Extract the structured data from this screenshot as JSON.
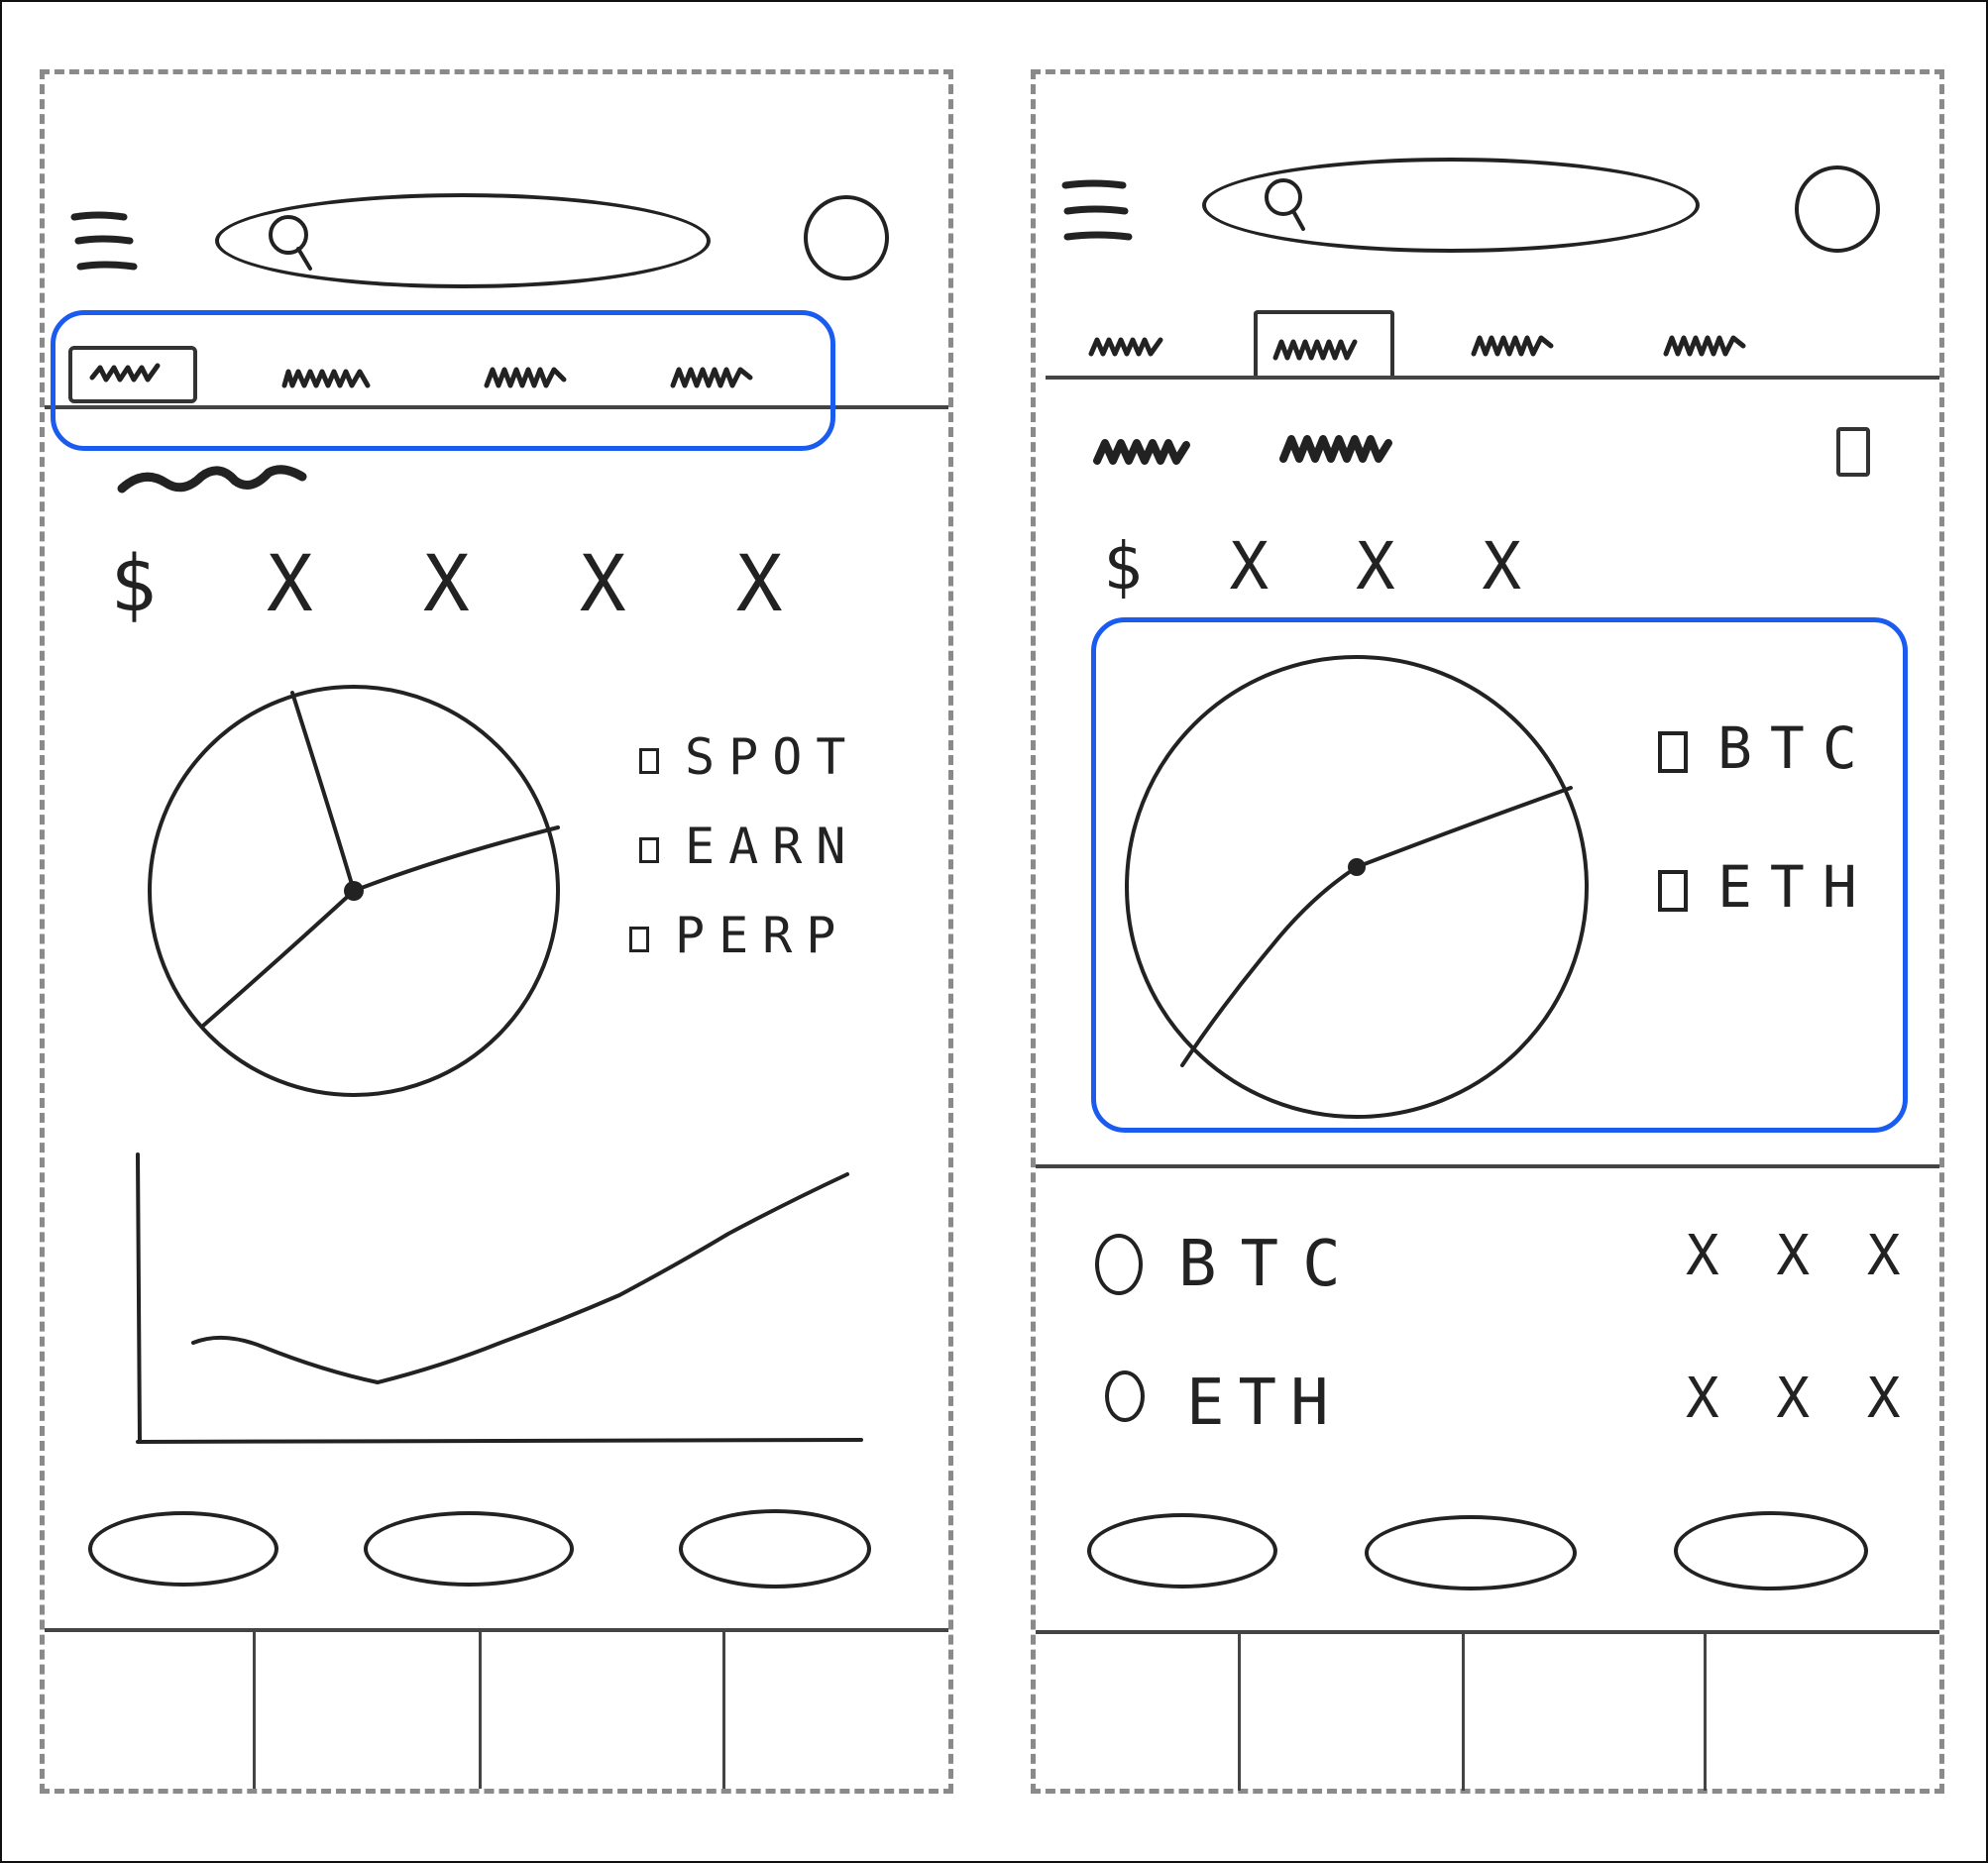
{
  "left_screen": {
    "balance": "$ X X X X",
    "legend": [
      {
        "label": "SPOT"
      },
      {
        "label": "EARN"
      },
      {
        "label": "PERP"
      }
    ]
  },
  "right_screen": {
    "balance": "$ X X X",
    "legend": [
      {
        "label": "BTC"
      },
      {
        "label": "ETH"
      }
    ],
    "assets": [
      {
        "name": "BTC",
        "value": "X X X"
      },
      {
        "name": "ETH",
        "value": "X X X"
      }
    ]
  },
  "colors": {
    "highlight": "#1a5cf0",
    "ink": "#222222",
    "frame": "#8a8a8a"
  },
  "icons": [
    "menu-icon",
    "search-icon",
    "avatar-icon",
    "bookmark-icon"
  ]
}
